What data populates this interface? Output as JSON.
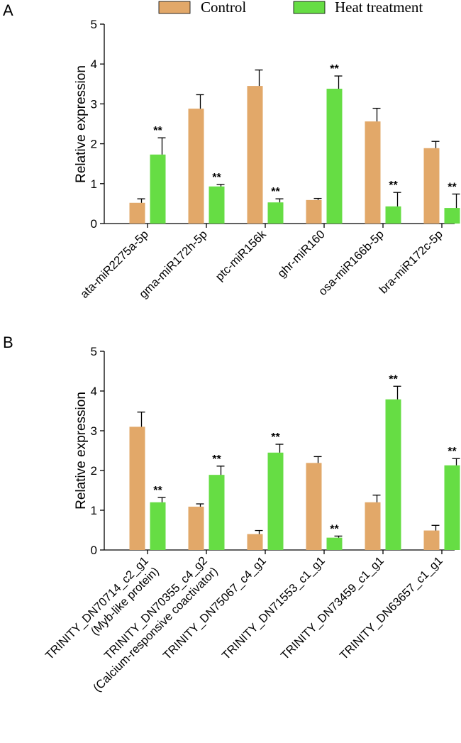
{
  "legend": {
    "control_label": "Control",
    "heat_label": "Heat treatment",
    "control_color": "#E2A869",
    "heat_color": "#66DD44"
  },
  "chart_data": [
    {
      "type": "bar",
      "panel_label": "A",
      "title": "",
      "xlabel": "",
      "ylabel": "Relative expression",
      "ylim": [
        0,
        5
      ],
      "yticks": [
        "0",
        "1",
        "2",
        "3",
        "4",
        "5"
      ],
      "categories": [
        [
          "ata-miR2275a-5p"
        ],
        [
          "gma-miR172h-5p"
        ],
        [
          "ptc-miR156k"
        ],
        [
          "ghr-miR160"
        ],
        [
          "osa-miR166b-5p"
        ],
        [
          "bra-miR172c-5p"
        ]
      ],
      "series": [
        {
          "name": "Control",
          "values": [
            0.52,
            2.88,
            3.45,
            0.59,
            2.56,
            1.89
          ],
          "errors": [
            0.1,
            0.35,
            0.4,
            0.04,
            0.33,
            0.17
          ],
          "significance": [
            "",
            "",
            "",
            "",
            "",
            ""
          ]
        },
        {
          "name": "Heat treatment",
          "values": [
            1.73,
            0.93,
            0.53,
            3.38,
            0.43,
            0.39
          ],
          "errors": [
            0.42,
            0.05,
            0.09,
            0.32,
            0.35,
            0.35
          ],
          "significance": [
            "**",
            "**",
            "**",
            "**",
            "**",
            "**"
          ]
        }
      ]
    },
    {
      "type": "bar",
      "panel_label": "B",
      "title": "",
      "xlabel": "",
      "ylabel": "Relative expression",
      "ylim": [
        0,
        5
      ],
      "yticks": [
        "0",
        "1",
        "2",
        "3",
        "4",
        "5"
      ],
      "categories": [
        [
          "TRINITY_DN70714_c2_g1",
          "(Myb-like protein)"
        ],
        [
          "TRINITY_DN70355_c4_g2",
          "(Calcium-responsive coactivator)"
        ],
        [
          "TRINITY_DN75067_c4_g1"
        ],
        [
          "TRINITY_DN71553_c1_g1"
        ],
        [
          "TRINITY_DN73459_c1_g1"
        ],
        [
          "TRINITY_DN63657_c1_g1"
        ]
      ],
      "series": [
        {
          "name": "Control",
          "values": [
            3.1,
            1.09,
            0.4,
            2.19,
            1.2,
            0.49
          ],
          "errors": [
            0.37,
            0.07,
            0.09,
            0.16,
            0.18,
            0.13
          ],
          "significance": [
            "",
            "",
            "",
            "",
            "",
            ""
          ]
        },
        {
          "name": "Heat treatment",
          "values": [
            1.2,
            1.89,
            2.45,
            0.31,
            3.79,
            2.13
          ],
          "errors": [
            0.12,
            0.22,
            0.21,
            0.04,
            0.33,
            0.17
          ],
          "significance": [
            "**",
            "**",
            "**",
            "**",
            "**",
            "**"
          ]
        }
      ]
    }
  ]
}
